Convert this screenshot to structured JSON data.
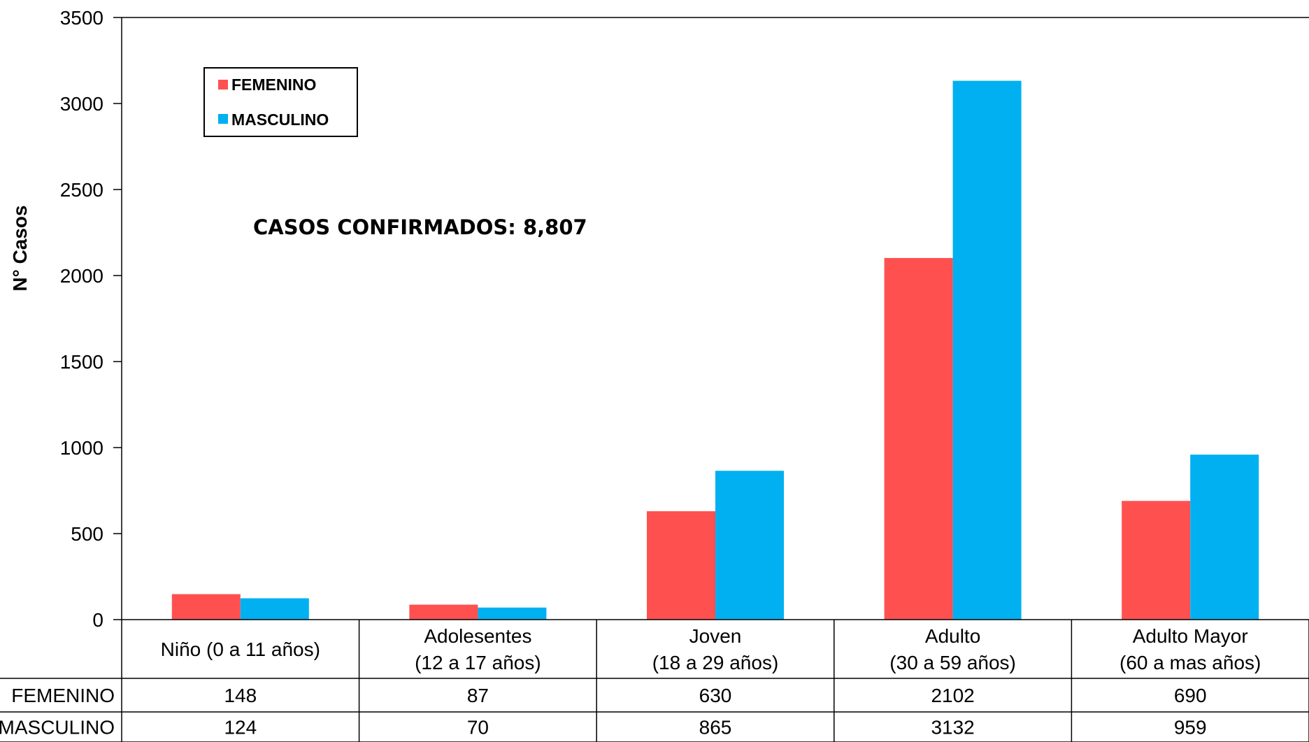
{
  "chart_data": {
    "type": "bar",
    "ylabel": "N° Casos",
    "ylim": [
      0,
      3500
    ],
    "yticks": [
      "0",
      "500",
      "1000",
      "1500",
      "2000",
      "2500",
      "3000",
      "3500"
    ],
    "categories": [
      [
        "Niño (0 a 11 años)"
      ],
      [
        "Adolesentes",
        "(12 a 17 años)"
      ],
      [
        "Joven",
        "(18 a 29 años)"
      ],
      [
        "Adulto",
        "(30 a 59 años)"
      ],
      [
        "Adulto Mayor",
        "(60 a mas años)"
      ]
    ],
    "series": [
      {
        "name": "FEMENINO",
        "table_label": "FEMENINO",
        "color": "#ff5050",
        "values": [
          148,
          87,
          630,
          2102,
          690
        ]
      },
      {
        "name": "MASCULINO",
        "table_label": "MASCULINO",
        "color": "#00b0f0",
        "values": [
          124,
          70,
          865,
          3132,
          959
        ]
      }
    ],
    "annotation": "CASOS CONFIRMADOS: 8,807",
    "legend_position": "top-left",
    "grid": false
  }
}
